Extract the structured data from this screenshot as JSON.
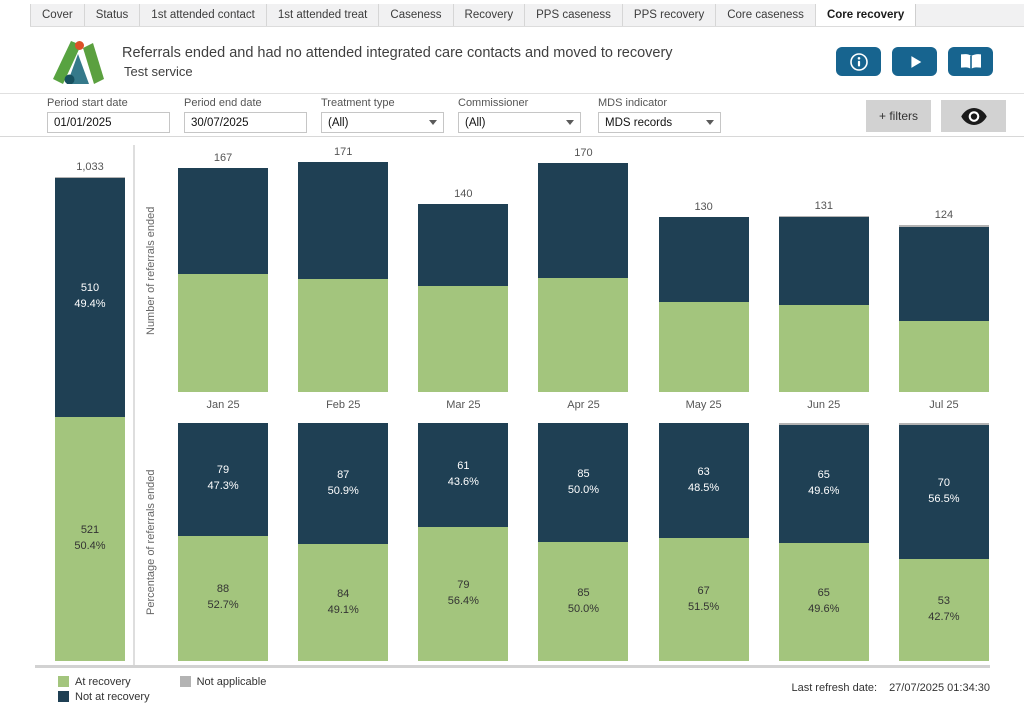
{
  "tabs": [
    "Cover",
    "Status",
    "1st attended contact",
    "1st attended treat",
    "Caseness",
    "Recovery",
    "PPS caseness",
    "PPS recovery",
    "Core caseness",
    "Core recovery"
  ],
  "active_tab": "Core recovery",
  "header": {
    "title": "Referrals ended and had no attended integrated care contacts and moved to recovery",
    "subtitle": "Test service"
  },
  "filters": [
    {
      "label": "Period start date",
      "value": "01/01/2025",
      "type": "input"
    },
    {
      "label": "Period end date",
      "value": "30/07/2025",
      "type": "input"
    },
    {
      "label": "Treatment type",
      "value": "(All)",
      "type": "dropdown"
    },
    {
      "label": "Commissioner",
      "value": "(All)",
      "type": "dropdown"
    },
    {
      "label": "MDS indicator",
      "value": "MDS records",
      "type": "dropdown"
    }
  ],
  "filter_buttons": {
    "add_filters": "+ filters"
  },
  "colors": {
    "accent_blue": "#17648f",
    "bar_green": "#a3c57d",
    "bar_navy": "#1f4054",
    "bar_gray": "#b3b3b3",
    "button_gray": "#d2d2d2"
  },
  "legend": [
    {
      "label": "At recovery",
      "color": "#a3c57d"
    },
    {
      "label": "Not at recovery",
      "color": "#1f4054"
    },
    {
      "label": "Not applicable",
      "color": "#b3b3b3"
    }
  ],
  "footer": {
    "label": "Last refresh date:",
    "value": "27/07/2025 01:34:30"
  },
  "chart_data": [
    {
      "id": "period-total",
      "type": "bar",
      "stacked": true,
      "categories": [
        "Total"
      ],
      "totals": [
        "1,033"
      ],
      "ylim": [
        0,
        1090
      ],
      "series": [
        {
          "name": "At recovery",
          "color": "#a3c57d",
          "label_color": "#333",
          "values": [
            521
          ],
          "labels": [
            "521\n50.4%"
          ]
        },
        {
          "name": "Not at recovery",
          "color": "#1f4054",
          "label_color": "#fff",
          "values": [
            510
          ],
          "labels": [
            "510\n49.4%"
          ]
        },
        {
          "name": "Not applicable",
          "color": "#b3b3b3",
          "label_color": "#333",
          "values": [
            2
          ],
          "labels": [
            ""
          ]
        }
      ]
    },
    {
      "id": "monthly-count",
      "type": "bar",
      "stacked": true,
      "ylabel": "Number of referrals ended",
      "categories": [
        "Jan 25",
        "Feb 25",
        "Mar 25",
        "Apr 25",
        "May 25",
        "Jun 25",
        "Jul 25"
      ],
      "totals": [
        "167",
        "171",
        "140",
        "170",
        "130",
        "131",
        "124"
      ],
      "ylim": [
        0,
        180
      ],
      "grid": false,
      "series": [
        {
          "name": "At recovery",
          "color": "#a3c57d",
          "values": [
            88,
            84,
            79,
            85,
            67,
            65,
            53
          ]
        },
        {
          "name": "Not at recovery",
          "color": "#1f4054",
          "values": [
            79,
            87,
            61,
            85,
            63,
            65,
            70
          ]
        },
        {
          "name": "Not applicable",
          "color": "#b3b3b3",
          "values": [
            0,
            0,
            0,
            0,
            0,
            1,
            1
          ]
        }
      ]
    },
    {
      "id": "monthly-percentage",
      "type": "bar",
      "stacked": true,
      "normalized": true,
      "ylabel": "Percentage of referrals ended",
      "categories": [
        "Jan 25",
        "Feb 25",
        "Mar 25",
        "Apr 25",
        "May 25",
        "Jun 25",
        "Jul 25"
      ],
      "ylim": [
        0,
        100
      ],
      "series": [
        {
          "name": "At recovery",
          "color": "#a3c57d",
          "label_color": "#333",
          "values": [
            52.7,
            49.1,
            56.4,
            50.0,
            51.5,
            49.6,
            42.7
          ],
          "labels": [
            "88\n52.7%",
            "84\n49.1%",
            "79\n56.4%",
            "85\n50.0%",
            "67\n51.5%",
            "65\n49.6%",
            "53\n42.7%"
          ]
        },
        {
          "name": "Not at recovery",
          "color": "#1f4054",
          "label_color": "#fff",
          "values": [
            47.3,
            50.9,
            43.6,
            50.0,
            48.5,
            49.6,
            56.5
          ],
          "labels": [
            "79\n47.3%",
            "87\n50.9%",
            "61\n43.6%",
            "85\n50.0%",
            "63\n48.5%",
            "65\n49.6%",
            "70\n56.5%"
          ]
        },
        {
          "name": "Not applicable",
          "color": "#b3b3b3",
          "label_color": "#333",
          "values": [
            0,
            0,
            0,
            0,
            0,
            0.8,
            0.8
          ],
          "labels": [
            "",
            "",
            "",
            "",
            "",
            "",
            ""
          ]
        }
      ]
    }
  ]
}
